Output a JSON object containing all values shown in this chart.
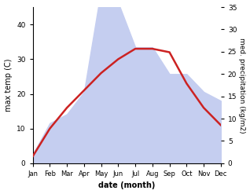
{
  "months": [
    "Jan",
    "Feb",
    "Mar",
    "Apr",
    "May",
    "Jun",
    "Jul",
    "Aug",
    "Sep",
    "Oct",
    "Nov",
    "Dec"
  ],
  "month_indices": [
    0,
    1,
    2,
    3,
    4,
    5,
    6,
    7,
    8,
    9,
    10,
    11
  ],
  "temperature": [
    2,
    10,
    16,
    21,
    26,
    30,
    33,
    33,
    32,
    23,
    16,
    11
  ],
  "precipitation": [
    2,
    9,
    11,
    16,
    39,
    36,
    26,
    26,
    20,
    20,
    16,
    14
  ],
  "temp_color": "#cc2222",
  "precip_fill_color": "#c5cef0",
  "temp_ylim": [
    0,
    45
  ],
  "precip_ylim": [
    0,
    35
  ],
  "temp_yticks": [
    0,
    10,
    20,
    30,
    40
  ],
  "precip_yticks": [
    0,
    5,
    10,
    15,
    20,
    25,
    30,
    35
  ],
  "xlabel": "date (month)",
  "ylabel_left": "max temp (C)",
  "ylabel_right": "med. precipitation (kg/m2)",
  "background_color": "#ffffff",
  "figsize": [
    3.18,
    2.47
  ],
  "dpi": 100
}
